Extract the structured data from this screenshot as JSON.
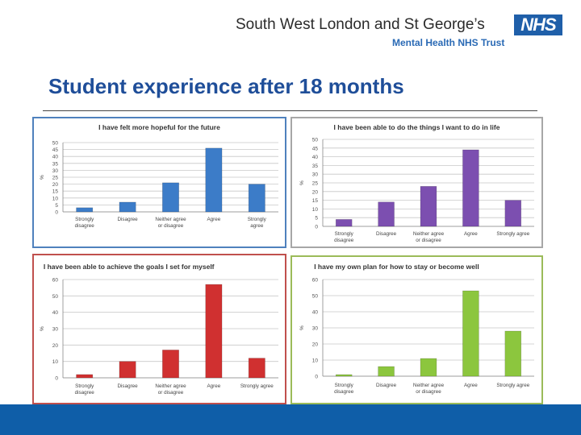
{
  "header": {
    "org_name": "South West London and St George’s",
    "org_sub": "Mental Health NHS Trust",
    "nhs_logo": "NHS"
  },
  "slide": {
    "title": "Student experience after 18 months"
  },
  "colors": {
    "title": "#1f4e99",
    "footer": "#0f5ea8"
  },
  "chart_data": [
    {
      "type": "bar",
      "title": "I have felt more hopeful for the future",
      "categories": [
        "Strongly disagree",
        "Disagree",
        "Neither agree or disagree",
        "Agree",
        "Strongly agree"
      ],
      "values": [
        3,
        7,
        21,
        46,
        20
      ],
      "ylabel": "%",
      "ylim": [
        0,
        50
      ],
      "yticks": [
        "0",
        "5",
        "10",
        "15",
        "20",
        "25",
        "30",
        "35",
        "40",
        "45",
        "50"
      ],
      "color": "#3c7cc8",
      "border_color": "#4f81bd",
      "grid": true
    },
    {
      "type": "bar",
      "title": "I have been able to do the things I want to do in life",
      "categories": [
        "Strongly disagree",
        "Disagree",
        "Neither agree or disagree",
        "Agree",
        "Strongly agree"
      ],
      "values": [
        4,
        14,
        23,
        44,
        15
      ],
      "ylabel": "%",
      "ylim": [
        0,
        50
      ],
      "yticks": [
        "0",
        "5",
        "10",
        "15",
        "20",
        "25",
        "30",
        "35",
        "40",
        "45",
        "50"
      ],
      "color": "#7c4fb0",
      "border_color": "#a7a7a7",
      "grid": true
    },
    {
      "type": "bar",
      "title": "I have been able to achieve the goals I set for myself",
      "categories": [
        "Strongly disagree",
        "Disagree",
        "Neither agree or disagree",
        "Agree",
        "Strongly agree"
      ],
      "values": [
        2,
        10,
        17,
        57,
        12
      ],
      "ylabel": "%",
      "ylim": [
        0,
        60
      ],
      "yticks": [
        "0",
        "10",
        "20",
        "30",
        "40",
        "50",
        "60"
      ],
      "color": "#d03030",
      "border_color": "#c0504d",
      "grid": true
    },
    {
      "type": "bar",
      "title": "I have my own plan for how to stay or become well",
      "categories": [
        "Strongly disagree",
        "Disagree",
        "Neither agree or disagree",
        "Agree",
        "Strongly agree"
      ],
      "values": [
        1,
        6,
        11,
        53,
        28
      ],
      "ylabel": "%",
      "ylim": [
        0,
        60
      ],
      "yticks": [
        "0",
        "10",
        "20",
        "30",
        "40",
        "50",
        "60"
      ],
      "color": "#8cc63e",
      "border_color": "#9bbb59",
      "grid": true
    }
  ]
}
